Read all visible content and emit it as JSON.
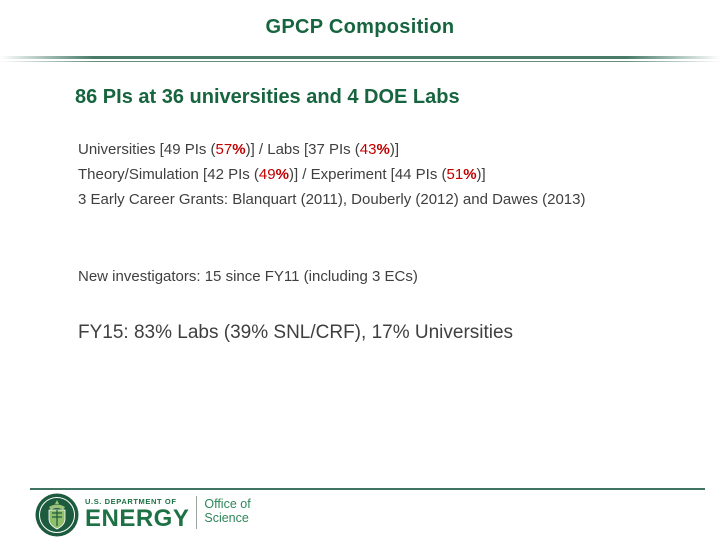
{
  "slide": {
    "title": "GPCP Composition",
    "heading": "86 PIs at 36 universities and 4 DOE Labs",
    "body_lines": [
      {
        "segments": [
          {
            "text": "Universities [49 PIs (",
            "style": "normal"
          },
          {
            "text": "57",
            "style": "red"
          },
          {
            "text": "%",
            "style": "red_bold"
          },
          {
            "text": ")] / Labs [37 PIs (",
            "style": "normal"
          },
          {
            "text": "43",
            "style": "red"
          },
          {
            "text": "%",
            "style": "red_bold"
          },
          {
            "text": ")]",
            "style": "normal"
          }
        ]
      },
      {
        "segments": [
          {
            "text": "Theory/Simulation [42 PIs (",
            "style": "normal"
          },
          {
            "text": "49",
            "style": "red"
          },
          {
            "text": "%",
            "style": "red_bold"
          },
          {
            "text": ")] / Experiment [44 PIs (",
            "style": "normal"
          },
          {
            "text": "51",
            "style": "red"
          },
          {
            "text": "%",
            "style": "red_bold"
          },
          {
            "text": ")]",
            "style": "normal"
          }
        ]
      },
      {
        "segments": [
          {
            "text": "3 Early Career Grants: Blanquart (2011), Douberly (2012) and Dawes (2013)",
            "style": "normal"
          }
        ]
      }
    ],
    "new_investigators": "New investigators: 15 since FY11 (including 3 ECs)",
    "fy15_summary": "FY15: 83% Labs (39% SNL/CRF), 17% Universities"
  },
  "footer": {
    "logo": {
      "seal_icon": "doe-seal-icon",
      "department_label": "U.S. DEPARTMENT OF",
      "energy_label": "ENERGY",
      "office_line1": "Office of",
      "office_line2": "Science"
    }
  },
  "colors": {
    "title_green": "#17653F",
    "body_gray": "#3F3F3F",
    "accent_red": "#C00000",
    "rule_green": "#3E7460",
    "energy_green": "#1E7145",
    "office_green": "#2F8659"
  }
}
